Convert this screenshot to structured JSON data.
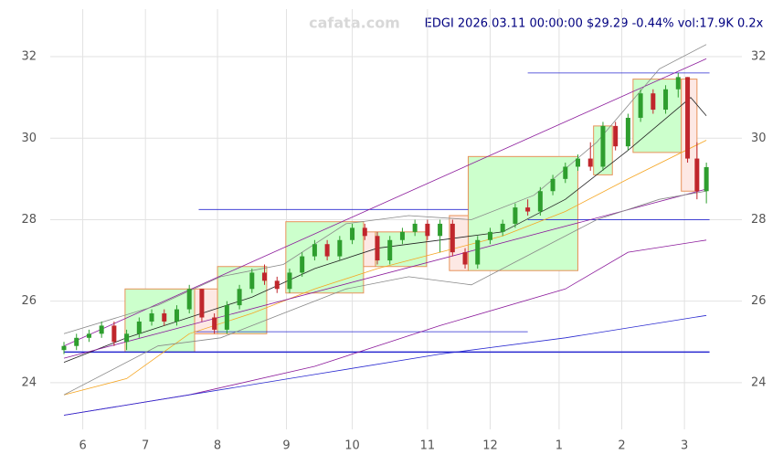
{
  "chart_data": {
    "type": "candlestick",
    "title": "EDGI 2026.03.11 00:00:00 $29.29 -0.44% vol:17.9K 0.2x",
    "watermark": "cafata.com",
    "xlim": [
      0,
      207
    ],
    "ylim": [
      23.1,
      33.1
    ],
    "xticks": [
      {
        "value": 6,
        "label": "6"
      },
      {
        "value": 26,
        "label": "7"
      },
      {
        "value": 49,
        "label": "8"
      },
      {
        "value": 71,
        "label": "9"
      },
      {
        "value": 92,
        "label": "10"
      },
      {
        "value": 116,
        "label": "11"
      },
      {
        "value": 136,
        "label": "12"
      },
      {
        "value": 158,
        "label": "1"
      },
      {
        "value": 178,
        "label": "2"
      },
      {
        "value": 198,
        "label": "3"
      }
    ],
    "yticks": [
      24,
      26,
      28,
      30,
      32
    ],
    "grid": true,
    "up_color": "#2e9e2e",
    "down_color": "#c0262c",
    "candles": {
      "x": [
        0,
        4,
        8,
        12,
        16,
        20,
        24,
        28,
        32,
        36,
        40,
        44,
        48,
        52,
        56,
        60,
        64,
        68,
        72,
        76,
        80,
        84,
        88,
        92,
        96,
        100,
        104,
        108,
        112,
        116,
        120,
        124,
        128,
        132,
        136,
        140,
        144,
        148,
        152,
        156,
        160,
        164,
        168,
        172,
        176,
        180,
        184,
        188,
        192,
        196,
        199,
        202,
        205
      ],
      "open": [
        24.8,
        24.9,
        25.1,
        25.2,
        25.4,
        25.0,
        25.2,
        25.5,
        25.7,
        25.5,
        25.8,
        26.3,
        25.6,
        25.3,
        25.9,
        26.3,
        26.7,
        26.5,
        26.3,
        26.7,
        27.1,
        27.4,
        27.1,
        27.5,
        27.8,
        27.6,
        27.0,
        27.5,
        27.7,
        27.9,
        27.6,
        27.9,
        27.2,
        26.9,
        27.5,
        27.7,
        27.9,
        28.3,
        28.2,
        28.7,
        29.0,
        29.3,
        29.5,
        29.3,
        30.3,
        29.8,
        30.5,
        31.1,
        30.7,
        31.2,
        31.5,
        29.5,
        28.7
      ],
      "high": [
        25.0,
        25.2,
        25.3,
        25.5,
        25.5,
        25.3,
        25.6,
        25.8,
        25.8,
        25.9,
        26.4,
        26.3,
        25.7,
        26.0,
        26.4,
        26.8,
        26.9,
        26.6,
        26.8,
        27.2,
        27.5,
        27.5,
        27.6,
        27.9,
        27.9,
        27.7,
        27.6,
        27.8,
        28.0,
        28.0,
        28.0,
        28.0,
        27.3,
        27.6,
        27.8,
        28.0,
        28.4,
        28.5,
        28.8,
        29.1,
        29.4,
        29.6,
        29.9,
        30.4,
        30.4,
        30.6,
        31.2,
        31.2,
        31.3,
        31.6,
        31.5,
        29.9,
        29.4
      ],
      "low": [
        24.7,
        24.8,
        25.0,
        25.1,
        24.9,
        24.8,
        25.1,
        25.4,
        25.4,
        25.4,
        25.7,
        25.5,
        25.2,
        25.2,
        25.8,
        26.2,
        26.4,
        26.2,
        26.2,
        26.6,
        27.0,
        27.0,
        27.0,
        27.4,
        27.5,
        26.9,
        26.9,
        27.4,
        27.6,
        27.5,
        27.2,
        27.1,
        26.8,
        26.8,
        27.4,
        27.6,
        27.8,
        28.1,
        28.1,
        28.6,
        28.9,
        29.2,
        29.2,
        29.2,
        29.7,
        29.7,
        30.4,
        30.6,
        30.6,
        31.0,
        29.4,
        28.5,
        28.4
      ],
      "close": [
        24.9,
        25.1,
        25.2,
        25.4,
        25.0,
        25.2,
        25.5,
        25.7,
        25.5,
        25.8,
        26.3,
        25.6,
        25.3,
        25.9,
        26.3,
        26.7,
        26.5,
        26.3,
        26.7,
        27.1,
        27.4,
        27.1,
        27.5,
        27.8,
        27.6,
        27.0,
        27.5,
        27.7,
        27.9,
        27.6,
        27.9,
        27.2,
        26.9,
        27.5,
        27.7,
        27.9,
        28.3,
        28.2,
        28.7,
        29.0,
        29.3,
        29.5,
        29.3,
        30.3,
        29.8,
        30.5,
        31.1,
        30.7,
        31.2,
        31.5,
        29.5,
        28.7,
        29.29
      ]
    },
    "lines": [
      {
        "color": "#222222",
        "x": [
          0,
          20,
          40,
          60,
          80,
          100,
          120,
          140,
          160,
          180,
          200,
          205
        ],
        "values": [
          24.5,
          25.1,
          25.6,
          26.1,
          26.8,
          27.3,
          27.5,
          27.7,
          28.5,
          29.7,
          31.0,
          30.55
        ]
      },
      {
        "color": "#f5a623",
        "x": [
          0,
          20,
          40,
          60,
          80,
          100,
          120,
          140,
          160,
          180,
          205
        ],
        "values": [
          23.7,
          24.1,
          25.2,
          25.7,
          26.3,
          26.8,
          27.2,
          27.6,
          28.2,
          29.0,
          29.95
        ]
      },
      {
        "color": "#8b1a9b",
        "x": [
          0,
          205
        ],
        "values": [
          24.9,
          31.95
        ]
      },
      {
        "color": "#8b1a9b",
        "x": [
          0,
          205
        ],
        "values": [
          24.6,
          28.75
        ]
      },
      {
        "color": "#8b1a9b",
        "x": [
          0,
          40,
          80,
          120,
          160,
          180,
          205
        ],
        "values": [
          23.2,
          23.7,
          24.4,
          25.4,
          26.3,
          27.2,
          27.5
        ]
      },
      {
        "color": "#2828d0",
        "x": [
          0,
          80,
          120,
          160,
          205
        ],
        "values": [
          23.2,
          24.2,
          24.7,
          25.1,
          25.65
        ]
      },
      {
        "color": "#888888",
        "x": [
          0,
          30,
          50,
          70,
          90,
          110,
          130,
          150,
          170,
          190,
          205
        ],
        "values": [
          25.2,
          25.9,
          26.6,
          26.9,
          27.9,
          28.1,
          28.0,
          28.6,
          29.9,
          31.7,
          32.3
        ]
      },
      {
        "color": "#888888",
        "x": [
          0,
          30,
          50,
          70,
          90,
          110,
          130,
          150,
          170,
          190,
          205
        ],
        "values": [
          23.7,
          24.9,
          25.1,
          25.7,
          26.3,
          26.6,
          26.4,
          27.2,
          28.0,
          28.5,
          28.7
        ]
      }
    ],
    "boxes": [
      {
        "color": "#ccffcc",
        "x": [
          19.5,
          41.7
        ],
        "y": [
          24.75,
          26.3
        ]
      },
      {
        "color": "#fde8e4",
        "x": [
          41.7,
          49
        ],
        "y": [
          25.2,
          26.3
        ]
      },
      {
        "color": "#ccffcc",
        "x": [
          49,
          64.7
        ],
        "y": [
          25.2,
          26.85
        ]
      },
      {
        "color": "#ccffcc",
        "x": [
          70.8,
          95.6
        ],
        "y": [
          26.2,
          27.95
        ]
      },
      {
        "color": "#fde8e4",
        "x": [
          95.6,
          99.4
        ],
        "y": [
          26.85,
          27.7
        ]
      },
      {
        "color": "#ccffcc",
        "x": [
          99.4,
          115.7
        ],
        "y": [
          26.85,
          27.7
        ]
      },
      {
        "color": "#fde8e4",
        "x": [
          123,
          129
        ],
        "y": [
          26.75,
          28.1
        ]
      },
      {
        "color": "#ccffcc",
        "x": [
          129,
          164
        ],
        "y": [
          26.75,
          29.55
        ]
      },
      {
        "color": "#ccffcc",
        "x": [
          169,
          175
        ],
        "y": [
          29.1,
          30.3
        ]
      },
      {
        "color": "#ccffcc",
        "x": [
          181.6,
          197
        ],
        "y": [
          29.65,
          31.45
        ]
      },
      {
        "color": "#fde8e4",
        "x": [
          197,
          202
        ],
        "y": [
          28.7,
          31.45
        ]
      }
    ],
    "hlines": [
      {
        "color": "#2828d0",
        "x": [
          43,
          129
        ],
        "value": 28.25
      },
      {
        "color": "#2828d0",
        "x": [
          148,
          206
        ],
        "value": 31.6
      },
      {
        "color": "#2828d0",
        "x": [
          148,
          206
        ],
        "value": 28.0
      },
      {
        "color": "#2828d0",
        "x": [
          41.7,
          148
        ],
        "value": 25.25
      },
      {
        "color": "#2828d0",
        "x": [
          0,
          206
        ],
        "value": 24.75
      }
    ]
  }
}
